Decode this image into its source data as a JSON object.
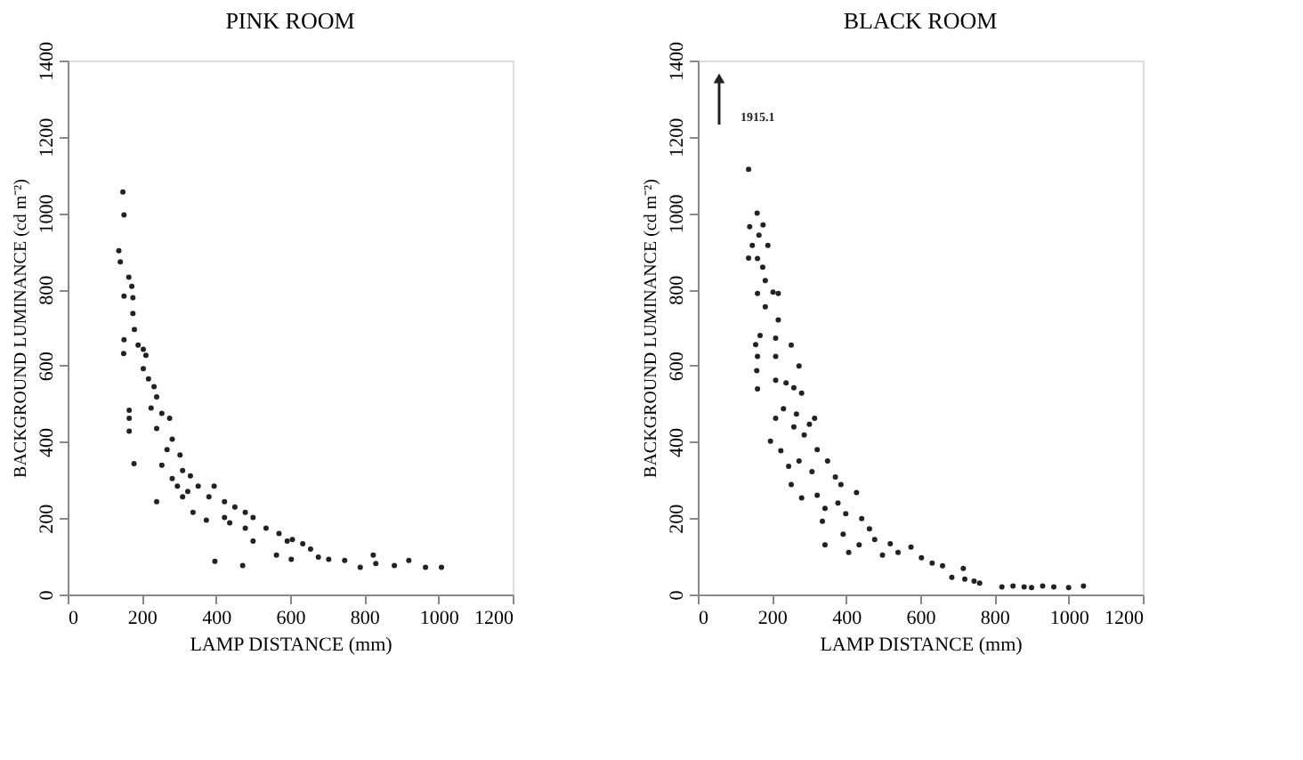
{
  "chart_data": [
    {
      "type": "scatter",
      "title": "PINK ROOM",
      "xlabel": "LAMP DISTANCE (mm)",
      "ylabel": "BACKGROUND LUMINANCE (cd m⁻²)",
      "xlim": [
        0,
        1200
      ],
      "ylim": [
        0,
        1400
      ],
      "xticks": [
        0,
        200,
        400,
        600,
        800,
        1000,
        1200
      ],
      "yticks": [
        0,
        200,
        400,
        600,
        800,
        1000,
        1200,
        1400
      ],
      "grid": false,
      "marker": "circle",
      "series": [
        {
          "color": "#222222",
          "x": [
            149,
            152,
            138,
            142,
            165,
            173,
            152,
            176,
            176,
            180,
            152,
            151,
            190,
            204,
            211,
            204,
            218,
            233,
            240,
            166,
            166,
            166,
            179,
            225,
            254,
            240,
            275,
            282,
            268,
            303,
            254,
            310,
            331,
            282,
            352,
            240,
            310,
            338,
            381,
            395,
            423,
            451,
            423,
            479,
            500,
            437,
            479,
            500,
            535,
            570,
            592,
            606,
            634,
            563,
            603,
            655,
            676,
            704,
            747,
            789,
            824,
            831,
            881,
            920,
            965,
            1008,
            397,
            472,
            324,
            374,
            296
          ],
          "values": [
            1055,
            995,
            901,
            872,
            832,
            808,
            782,
            778,
            737,
            695,
            668,
            632,
            654,
            643,
            627,
            592,
            565,
            545,
            518,
            483,
            462,
            428,
            343,
            489,
            475,
            435,
            462,
            407,
            380,
            366,
            339,
            325,
            311,
            304,
            284,
            243,
            256,
            215,
            256,
            284,
            243,
            229,
            202,
            215,
            202,
            188,
            174,
            140,
            174,
            160,
            140,
            144,
            133,
            103,
            92,
            119,
            98,
            92,
            89,
            71,
            103,
            81,
            76,
            89,
            71,
            71,
            87,
            76,
            270,
            195,
            284
          ]
        }
      ]
    },
    {
      "type": "scatter",
      "title": "BLACK ROOM",
      "xlabel": "LAMP DISTANCE (mm)",
      "ylabel": "BACKGROUND LUMINANCE (cd m⁻²)",
      "xlim": [
        0,
        1200
      ],
      "ylim": [
        0,
        1400
      ],
      "xticks": [
        0,
        200,
        400,
        600,
        800,
        1000,
        1200
      ],
      "yticks": [
        0,
        200,
        400,
        600,
        800,
        1000,
        1200,
        1400
      ],
      "grid": false,
      "marker": "circle",
      "annotations": [
        "1915.1"
      ],
      "series": [
        {
          "color": "#222222",
          "x": [
            137,
            160,
            140,
            176,
            165,
            147,
            189,
            137,
            161,
            175,
            182,
            161,
            203,
            217,
            182,
            217,
            168,
            156,
            161,
            210,
            252,
            210,
            273,
            159,
            161,
            210,
            238,
            259,
            280,
            231,
            210,
            266,
            301,
            315,
            196,
            259,
            224,
            287,
            322,
            350,
            245,
            273,
            308,
            371,
            386,
            252,
            280,
            322,
            343,
            378,
            399,
            428,
            442,
            463,
            336,
            343,
            392,
            407,
            435,
            477,
            519,
            498,
            540,
            575,
            603,
            632,
            660,
            716,
            685,
            720,
            745,
            760,
            820,
            850,
            880,
            900,
            930,
            960,
            1000,
            1040
          ],
          "values": [
            1115,
            1000,
            964,
            969,
            942,
            915,
            915,
            882,
            881,
            858,
            823,
            789,
            793,
            789,
            754,
            720,
            679,
            655,
            624,
            672,
            654,
            624,
            599,
            587,
            539,
            562,
            555,
            542,
            528,
            487,
            462,
            473,
            446,
            462,
            402,
            439,
            377,
            418,
            380,
            350,
            336,
            350,
            322,
            308,
            288,
            288,
            253,
            260,
            226,
            240,
            212,
            267,
            199,
            172,
            192,
            130,
            158,
            110,
            130,
            144,
            133,
            103,
            110,
            124,
            96,
            82,
            75,
            68,
            45,
            40,
            35,
            30,
            20,
            22,
            20,
            18,
            22,
            20,
            18,
            22
          ]
        }
      ]
    }
  ]
}
